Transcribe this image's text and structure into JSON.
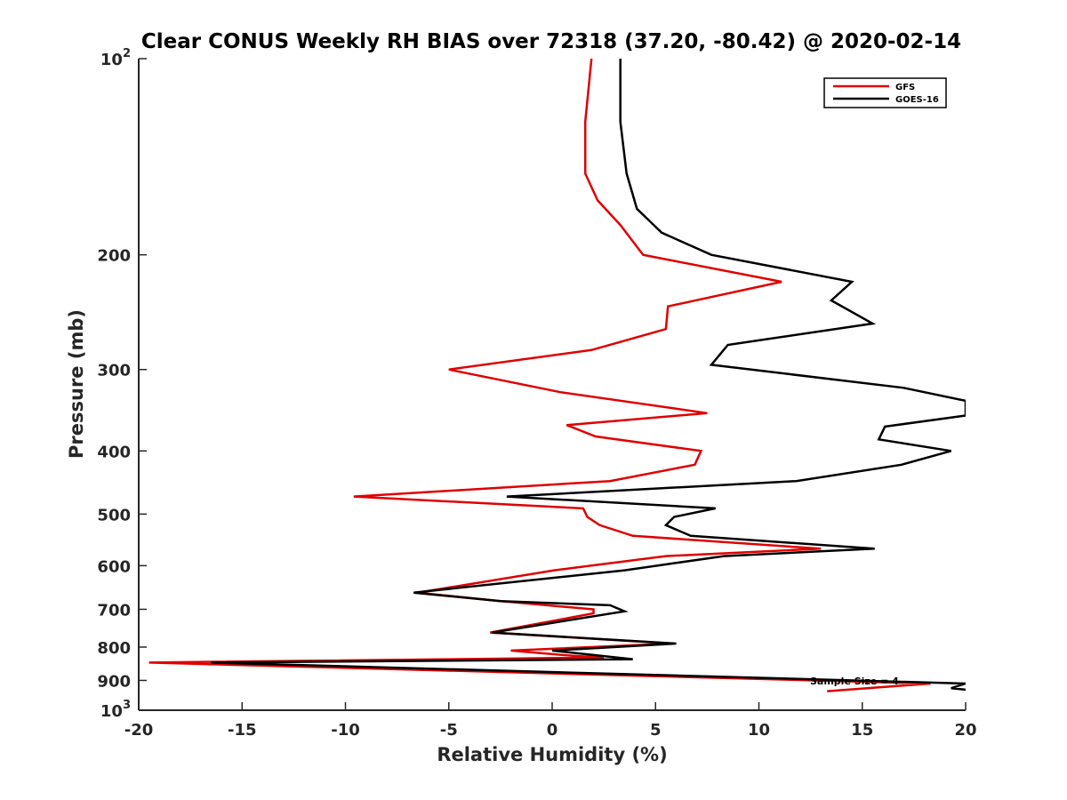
{
  "chart_data": {
    "type": "line",
    "title": "Clear CONUS Weekly RH BIAS over 72318 (37.20, -80.42) @ 2020-02-14",
    "xlabel": "Relative Humidity (%)",
    "ylabel": "Pressure (mb)",
    "xlim": [
      -20,
      20
    ],
    "ylim": [
      100,
      1000
    ],
    "y_scale": "log",
    "y_reversed": true,
    "grid": false,
    "legend_position": "top-right",
    "x_ticks": [
      -20,
      -15,
      -10,
      -5,
      0,
      5,
      10,
      15,
      20
    ],
    "x_tick_labels": [
      "-20",
      "-15",
      "-10",
      "-5",
      "0",
      "5",
      "10",
      "15",
      "20"
    ],
    "y_ticks": [
      100,
      200,
      300,
      400,
      500,
      600,
      700,
      800,
      900,
      1000
    ],
    "y_tick_labels": [
      {
        "base": "10",
        "sup": "2"
      },
      {
        "base": "200",
        "sup": ""
      },
      {
        "base": "300",
        "sup": ""
      },
      {
        "base": "400",
        "sup": ""
      },
      {
        "base": "500",
        "sup": ""
      },
      {
        "base": "600",
        "sup": ""
      },
      {
        "base": "700",
        "sup": ""
      },
      {
        "base": "800",
        "sup": ""
      },
      {
        "base": "900",
        "sup": ""
      },
      {
        "base": "10",
        "sup": "3"
      }
    ],
    "annotation": "Sample Size = 4",
    "series": [
      {
        "name": "GFS",
        "color": "#e00000",
        "points": [
          {
            "x": 1.9,
            "y": 100
          },
          {
            "x": 1.6,
            "y": 125
          },
          {
            "x": 1.6,
            "y": 150
          },
          {
            "x": 2.2,
            "y": 165
          },
          {
            "x": 3.3,
            "y": 180
          },
          {
            "x": 4.4,
            "y": 200
          },
          {
            "x": 11.1,
            "y": 220
          },
          {
            "x": 5.6,
            "y": 240
          },
          {
            "x": 5.5,
            "y": 260
          },
          {
            "x": 1.9,
            "y": 280
          },
          {
            "x": -5.0,
            "y": 300
          },
          {
            "x": 0.4,
            "y": 325
          },
          {
            "x": 7.5,
            "y": 350
          },
          {
            "x": 0.7,
            "y": 365
          },
          {
            "x": 2.1,
            "y": 380
          },
          {
            "x": 7.2,
            "y": 400
          },
          {
            "x": 6.9,
            "y": 420
          },
          {
            "x": 2.8,
            "y": 445
          },
          {
            "x": -9.6,
            "y": 470
          },
          {
            "x": 1.5,
            "y": 490
          },
          {
            "x": 1.7,
            "y": 505
          },
          {
            "x": 2.3,
            "y": 520
          },
          {
            "x": 3.9,
            "y": 540
          },
          {
            "x": 13.0,
            "y": 565
          },
          {
            "x": 5.5,
            "y": 580
          },
          {
            "x": 0.1,
            "y": 610
          },
          {
            "x": -6.5,
            "y": 660
          },
          {
            "x": -2.5,
            "y": 680
          },
          {
            "x": 2.0,
            "y": 700
          },
          {
            "x": 2.0,
            "y": 710
          },
          {
            "x": -3.0,
            "y": 760
          },
          {
            "x": 5.8,
            "y": 790
          },
          {
            "x": -2.0,
            "y": 810
          },
          {
            "x": 1.0,
            "y": 825
          },
          {
            "x": 2.5,
            "y": 830
          },
          {
            "x": -19.5,
            "y": 845
          },
          {
            "x": 18.3,
            "y": 910
          },
          {
            "x": 13.3,
            "y": 935
          }
        ]
      },
      {
        "name": "GOES-16",
        "color": "#000000",
        "points": [
          {
            "x": 3.3,
            "y": 100
          },
          {
            "x": 3.3,
            "y": 125
          },
          {
            "x": 3.6,
            "y": 150
          },
          {
            "x": 4.1,
            "y": 170
          },
          {
            "x": 5.3,
            "y": 185
          },
          {
            "x": 7.7,
            "y": 200
          },
          {
            "x": 14.5,
            "y": 220
          },
          {
            "x": 13.5,
            "y": 235
          },
          {
            "x": 15.5,
            "y": 255
          },
          {
            "x": 8.5,
            "y": 275
          },
          {
            "x": 7.7,
            "y": 295
          },
          {
            "x": 17.0,
            "y": 320
          },
          {
            "x": 20.0,
            "y": 335
          },
          {
            "x": 20.0,
            "y": 353
          },
          {
            "x": 16.1,
            "y": 367
          },
          {
            "x": 15.8,
            "y": 384
          },
          {
            "x": 19.3,
            "y": 400
          },
          {
            "x": 16.9,
            "y": 420
          },
          {
            "x": 11.8,
            "y": 445
          },
          {
            "x": -2.2,
            "y": 470
          },
          {
            "x": 7.9,
            "y": 490
          },
          {
            "x": 5.9,
            "y": 505
          },
          {
            "x": 5.5,
            "y": 520
          },
          {
            "x": 6.7,
            "y": 540
          },
          {
            "x": 15.6,
            "y": 565
          },
          {
            "x": 8.3,
            "y": 580
          },
          {
            "x": 3.5,
            "y": 610
          },
          {
            "x": -6.7,
            "y": 660
          },
          {
            "x": -2.5,
            "y": 680
          },
          {
            "x": 2.8,
            "y": 690
          },
          {
            "x": 3.5,
            "y": 705
          },
          {
            "x": -2.9,
            "y": 760
          },
          {
            "x": 6.0,
            "y": 790
          },
          {
            "x": 0.0,
            "y": 810
          },
          {
            "x": 3.9,
            "y": 835
          },
          {
            "x": -16.5,
            "y": 845
          },
          {
            "x": 20.0,
            "y": 910
          },
          {
            "x": 19.3,
            "y": 925
          },
          {
            "x": 20.0,
            "y": 930
          }
        ]
      }
    ]
  }
}
